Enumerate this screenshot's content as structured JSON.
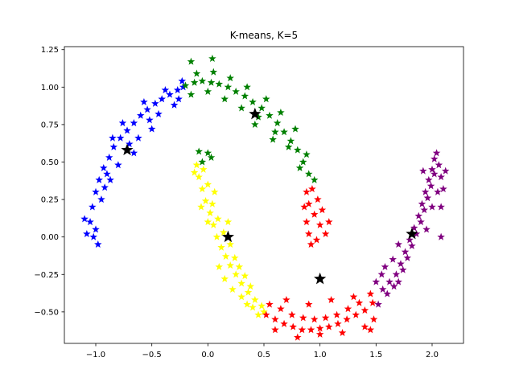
{
  "chart_data": {
    "type": "scatter",
    "title": "K-means, K=5",
    "xlabel": "",
    "ylabel": "",
    "xlim": [
      -1.28,
      2.28
    ],
    "ylim": [
      -0.71,
      1.27
    ],
    "x_ticks": [
      -1.0,
      -0.5,
      0.0,
      0.5,
      1.0,
      1.5,
      2.0
    ],
    "x_tick_labels": [
      "−1.0",
      "−0.5",
      "0.0",
      "0.5",
      "1.0",
      "1.5",
      "2.0"
    ],
    "y_ticks": [
      -0.5,
      -0.25,
      0.0,
      0.25,
      0.5,
      0.75,
      1.0,
      1.25
    ],
    "y_tick_labels": [
      "−0.50",
      "−0.25",
      "0.00",
      "0.25",
      "0.50",
      "0.75",
      "1.00",
      "1.25"
    ],
    "grid": false,
    "legend": "none",
    "marker": "star",
    "clusters": [
      {
        "color": "#0000ff",
        "centroid": [
          -0.72,
          0.58
        ],
        "points": [
          [
            -1.02,
            0.0
          ],
          [
            -1.05,
            0.1
          ],
          [
            -1.03,
            0.2
          ],
          [
            -1.0,
            0.3
          ],
          [
            -0.97,
            0.38
          ],
          [
            -0.93,
            0.46
          ],
          [
            -0.88,
            0.53
          ],
          [
            -0.84,
            0.6
          ],
          [
            -0.78,
            0.66
          ],
          [
            -0.72,
            0.71
          ],
          [
            -0.66,
            0.76
          ],
          [
            -0.6,
            0.81
          ],
          [
            -0.54,
            0.85
          ],
          [
            -0.47,
            0.89
          ],
          [
            -0.41,
            0.92
          ],
          [
            -0.34,
            0.95
          ],
          [
            -0.27,
            0.98
          ],
          [
            -0.22,
            1.0
          ],
          [
            -1.1,
            0.12
          ],
          [
            -1.08,
            0.02
          ],
          [
            -0.95,
            0.25
          ],
          [
            -0.9,
            0.42
          ],
          [
            -0.8,
            0.48
          ],
          [
            -0.7,
            0.62
          ],
          [
            -0.62,
            0.66
          ],
          [
            -0.52,
            0.78
          ],
          [
            -0.44,
            0.82
          ],
          [
            -0.3,
            0.88
          ],
          [
            -0.26,
            0.92
          ],
          [
            -0.98,
            -0.05
          ],
          [
            -1.0,
            0.05
          ],
          [
            -0.92,
            0.33
          ],
          [
            -0.85,
            0.66
          ],
          [
            -0.76,
            0.76
          ],
          [
            -0.57,
            0.9
          ],
          [
            -0.38,
            0.98
          ],
          [
            -0.23,
            1.04
          ],
          [
            -0.87,
            0.38
          ],
          [
            -0.66,
            0.56
          ],
          [
            -0.5,
            0.72
          ]
        ]
      },
      {
        "color": "#008000",
        "centroid": [
          0.42,
          0.82
        ],
        "points": [
          [
            -0.2,
            1.01
          ],
          [
            -0.12,
            1.03
          ],
          [
            -0.05,
            1.04
          ],
          [
            0.03,
            1.03
          ],
          [
            0.1,
            1.02
          ],
          [
            0.18,
            1.0
          ],
          [
            0.25,
            0.97
          ],
          [
            0.33,
            0.94
          ],
          [
            0.4,
            0.9
          ],
          [
            0.48,
            0.86
          ],
          [
            0.55,
            0.81
          ],
          [
            0.62,
            0.76
          ],
          [
            0.68,
            0.7
          ],
          [
            0.74,
            0.64
          ],
          [
            0.8,
            0.58
          ],
          [
            0.85,
            0.5
          ],
          [
            0.9,
            0.42
          ],
          [
            0.95,
            0.38
          ],
          [
            -0.15,
            0.95
          ],
          [
            0.0,
            0.97
          ],
          [
            0.15,
            0.92
          ],
          [
            0.3,
            0.86
          ],
          [
            0.45,
            0.8
          ],
          [
            0.6,
            0.7
          ],
          [
            0.72,
            0.6
          ],
          [
            0.82,
            0.46
          ],
          [
            -0.1,
            1.09
          ],
          [
            0.05,
            1.1
          ],
          [
            0.2,
            1.06
          ],
          [
            0.35,
            1.0
          ],
          [
            0.52,
            0.92
          ],
          [
            0.65,
            0.83
          ],
          [
            0.78,
            0.72
          ],
          [
            0.88,
            0.55
          ],
          [
            -0.15,
            1.17
          ],
          [
            0.04,
            1.19
          ],
          [
            0.0,
            0.56
          ],
          [
            -0.05,
            0.5
          ],
          [
            0.03,
            0.53
          ],
          [
            -0.08,
            0.57
          ],
          [
            0.42,
            0.75
          ],
          [
            0.58,
            0.65
          ]
        ]
      },
      {
        "color": "#ffff00",
        "centroid": [
          0.18,
          0.0
        ],
        "points": [
          [
            -0.1,
            0.48
          ],
          [
            -0.08,
            0.4
          ],
          [
            -0.05,
            0.32
          ],
          [
            -0.02,
            0.24
          ],
          [
            0.02,
            0.16
          ],
          [
            0.05,
            0.08
          ],
          [
            0.08,
            0.0
          ],
          [
            0.12,
            -0.07
          ],
          [
            0.16,
            -0.13
          ],
          [
            0.2,
            -0.19
          ],
          [
            0.25,
            -0.25
          ],
          [
            0.3,
            -0.31
          ],
          [
            0.36,
            -0.37
          ],
          [
            0.42,
            -0.42
          ],
          [
            0.48,
            -0.46
          ],
          [
            0.5,
            -0.5
          ],
          [
            0.45,
            -0.52
          ],
          [
            0.4,
            -0.47
          ],
          [
            -0.12,
            0.43
          ],
          [
            -0.04,
            0.45
          ],
          [
            0.0,
            0.35
          ],
          [
            0.04,
            0.22
          ],
          [
            0.09,
            0.12
          ],
          [
            0.14,
            0.03
          ],
          [
            0.2,
            -0.05
          ],
          [
            0.24,
            -0.14
          ],
          [
            0.28,
            -0.2
          ],
          [
            0.33,
            -0.26
          ],
          [
            0.38,
            -0.33
          ],
          [
            0.1,
            -0.2
          ],
          [
            0.15,
            -0.28
          ],
          [
            0.22,
            -0.35
          ],
          [
            0.3,
            -0.4
          ],
          [
            0.35,
            -0.45
          ],
          [
            -0.06,
            0.2
          ],
          [
            0.06,
            0.3
          ],
          [
            0.0,
            0.1
          ],
          [
            0.18,
            0.1
          ]
        ]
      },
      {
        "color": "#ff0000",
        "centroid": [
          1.0,
          -0.28
        ],
        "points": [
          [
            0.52,
            -0.52
          ],
          [
            0.6,
            -0.55
          ],
          [
            0.68,
            -0.58
          ],
          [
            0.76,
            -0.6
          ],
          [
            0.84,
            -0.62
          ],
          [
            0.92,
            -0.62
          ],
          [
            1.0,
            -0.61
          ],
          [
            1.08,
            -0.6
          ],
          [
            1.16,
            -0.58
          ],
          [
            1.24,
            -0.55
          ],
          [
            1.32,
            -0.52
          ],
          [
            1.4,
            -0.49
          ],
          [
            1.47,
            -0.44
          ],
          [
            0.55,
            -0.45
          ],
          [
            0.65,
            -0.48
          ],
          [
            0.75,
            -0.52
          ],
          [
            0.85,
            -0.54
          ],
          [
            0.95,
            -0.55
          ],
          [
            1.05,
            -0.54
          ],
          [
            1.15,
            -0.52
          ],
          [
            1.25,
            -0.48
          ],
          [
            1.35,
            -0.44
          ],
          [
            1.45,
            -0.38
          ],
          [
            0.6,
            -0.62
          ],
          [
            0.8,
            -0.67
          ],
          [
            1.0,
            -0.65
          ],
          [
            1.2,
            -0.64
          ],
          [
            1.4,
            -0.6
          ],
          [
            0.9,
            -0.45
          ],
          [
            1.1,
            -0.42
          ],
          [
            1.3,
            -0.4
          ],
          [
            0.7,
            -0.42
          ],
          [
            0.88,
            0.3
          ],
          [
            0.86,
            0.2
          ],
          [
            0.88,
            0.1
          ],
          [
            0.9,
            0.02
          ],
          [
            0.92,
            -0.05
          ],
          [
            0.95,
            0.15
          ],
          [
            0.98,
            0.25
          ],
          [
            1.0,
            0.08
          ],
          [
            1.02,
            0.18
          ],
          [
            0.93,
            0.32
          ],
          [
            1.05,
            0.02
          ],
          [
            1.08,
            0.1
          ],
          [
            0.97,
            -0.02
          ],
          [
            0.9,
            0.22
          ],
          [
            1.45,
            -0.62
          ],
          [
            1.48,
            -0.55
          ]
        ]
      },
      {
        "color": "#800080",
        "centroid": [
          1.82,
          0.02
        ],
        "points": [
          [
            1.5,
            -0.3
          ],
          [
            1.56,
            -0.35
          ],
          [
            1.62,
            -0.3
          ],
          [
            1.68,
            -0.25
          ],
          [
            1.72,
            -0.18
          ],
          [
            1.76,
            -0.1
          ],
          [
            1.8,
            -0.02
          ],
          [
            1.84,
            0.06
          ],
          [
            1.88,
            0.14
          ],
          [
            1.91,
            0.22
          ],
          [
            1.94,
            0.3
          ],
          [
            1.97,
            0.38
          ],
          [
            2.0,
            0.45
          ],
          [
            2.02,
            0.52
          ],
          [
            2.04,
            0.56
          ],
          [
            1.55,
            -0.25
          ],
          [
            1.6,
            -0.38
          ],
          [
            1.66,
            -0.33
          ],
          [
            1.7,
            -0.3
          ],
          [
            1.74,
            -0.22
          ],
          [
            1.78,
            -0.14
          ],
          [
            1.82,
            -0.06
          ],
          [
            1.86,
            0.02
          ],
          [
            1.9,
            0.1
          ],
          [
            1.93,
            0.18
          ],
          [
            1.96,
            0.26
          ],
          [
            1.99,
            0.34
          ],
          [
            2.02,
            0.42
          ],
          [
            2.06,
            0.48
          ],
          [
            2.08,
            0.4
          ],
          [
            2.05,
            0.3
          ],
          [
            2.0,
            0.2
          ],
          [
            1.95,
            0.05
          ],
          [
            1.7,
            -0.05
          ],
          [
            1.65,
            -0.15
          ],
          [
            1.58,
            -0.2
          ],
          [
            2.1,
            0.32
          ],
          [
            2.12,
            0.44
          ],
          [
            2.08,
            0.2
          ],
          [
            1.92,
            0.44
          ],
          [
            2.08,
            0.0
          ],
          [
            1.52,
            -0.45
          ]
        ]
      }
    ]
  }
}
